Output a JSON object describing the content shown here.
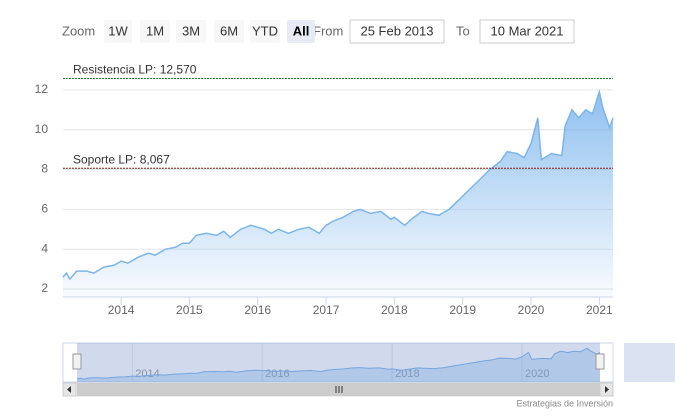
{
  "range_selector": {
    "zoom_label": "Zoom",
    "buttons": [
      "1W",
      "1M",
      "3M",
      "6M",
      "YTD",
      "All"
    ],
    "selected": 5,
    "from_label": "From",
    "from_value": "25 Feb 2013",
    "to_label": "To",
    "to_value": "10 Mar 2021"
  },
  "chart_data": {
    "type": "area",
    "color": "#7cb5ec",
    "x": [
      2013.15,
      2013.2,
      2013.25,
      2013.35,
      2013.5,
      2013.6,
      2013.75,
      2013.9,
      2014.0,
      2014.1,
      2014.25,
      2014.4,
      2014.5,
      2014.65,
      2014.8,
      2014.9,
      2015.0,
      2015.1,
      2015.25,
      2015.4,
      2015.5,
      2015.6,
      2015.75,
      2015.9,
      2016.0,
      2016.1,
      2016.2,
      2016.3,
      2016.45,
      2016.6,
      2016.75,
      2016.9,
      2017.0,
      2017.1,
      2017.25,
      2017.4,
      2017.5,
      2017.65,
      2017.8,
      2017.95,
      2018.0,
      2018.15,
      2018.25,
      2018.4,
      2018.5,
      2018.65,
      2018.8,
      2018.95,
      2019.1,
      2019.25,
      2019.4,
      2019.55,
      2019.65,
      2019.8,
      2019.9,
      2020.0,
      2020.1,
      2020.15,
      2020.3,
      2020.45,
      2020.5,
      2020.6,
      2020.7,
      2020.8,
      2020.9,
      2021.0,
      2021.05,
      2021.15,
      2021.2
    ],
    "values": [
      2.6,
      2.8,
      2.5,
      2.9,
      2.9,
      2.8,
      3.1,
      3.2,
      3.4,
      3.3,
      3.6,
      3.8,
      3.7,
      4.0,
      4.1,
      4.3,
      4.3,
      4.7,
      4.8,
      4.7,
      4.9,
      4.6,
      5.0,
      5.2,
      5.1,
      5.0,
      4.8,
      5.0,
      4.8,
      5.0,
      5.1,
      4.8,
      5.2,
      5.4,
      5.6,
      5.9,
      6.0,
      5.8,
      5.9,
      5.5,
      5.6,
      5.2,
      5.5,
      5.9,
      5.8,
      5.7,
      6.0,
      6.5,
      7.0,
      7.5,
      8.0,
      8.4,
      8.9,
      8.8,
      8.6,
      9.3,
      10.6,
      8.5,
      8.8,
      8.7,
      10.2,
      11.0,
      10.6,
      11.0,
      10.8,
      11.9,
      11.1,
      10.1,
      10.6
    ],
    "xlim": [
      2013.15,
      2021.2
    ],
    "xticks": [
      2014,
      2015,
      2016,
      2017,
      2018,
      2019,
      2020,
      2021
    ],
    "ylim": [
      1.6,
      13.5
    ],
    "yticks": [
      2,
      4,
      6,
      8,
      10,
      12
    ],
    "grid": true,
    "plot_lines": [
      {
        "value": 12.57,
        "label": "Resistencia LP: 12,570",
        "color": "#2e7d32"
      },
      {
        "value": 8.067,
        "label": "Soporte LP: 8,067",
        "color": "#8b1a1a"
      }
    ],
    "navigator_xticks": [
      2014,
      2016,
      2018,
      2020
    ]
  },
  "credits": "Estrategias de Inversión"
}
